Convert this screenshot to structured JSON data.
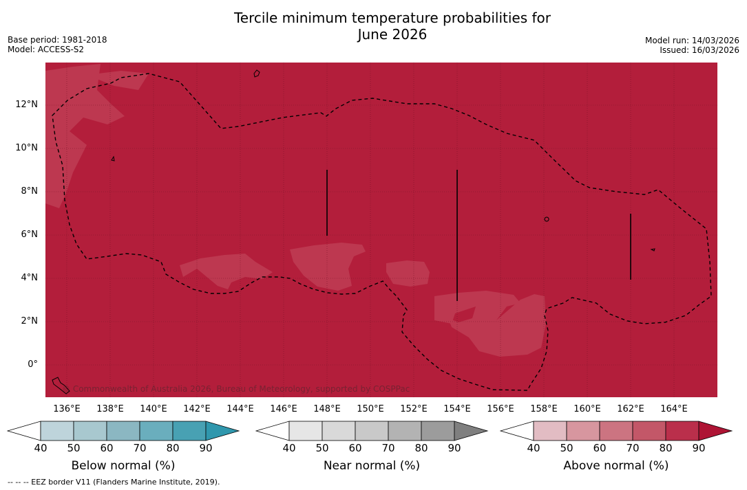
{
  "title_line1": "Tercile minimum temperature probabilities for",
  "title_line2": "June 2026",
  "base_period": "Base period: 1981-2018",
  "model": "Model: ACCESS-S2",
  "model_run": "Model run: 14/03/2026",
  "issued": "Issued: 16/03/2026",
  "copyright": "© Commonwealth of Australia 2026, Bureau of Meteorology, supported by COSPPac",
  "footnote": "-- -- -- EEZ border V11 (Flanders Marine Institute, 2019).",
  "lat_labels": [
    "12°N",
    "10°N",
    "8°N",
    "6°N",
    "4°N",
    "2°N",
    "0°"
  ],
  "lon_labels": [
    "136°E",
    "138°E",
    "140°E",
    "142°E",
    "144°E",
    "146°E",
    "148°E",
    "150°E",
    "152°E",
    "154°E",
    "156°E",
    "158°E",
    "160°E",
    "162°E",
    "164°E"
  ],
  "map_colors": {
    "above_90": "#b31e3b",
    "above_80": "#bd3850",
    "eez_line": "#000000",
    "grid": "#7a1428"
  },
  "colorbars": [
    {
      "label": "Below normal (%)",
      "ticks": [
        "40",
        "50",
        "60",
        "70",
        "80",
        "90"
      ],
      "colors": [
        "#ffffff",
        "#bed4db",
        "#a8c8cf",
        "#8bb7c2",
        "#6aaebd",
        "#48a1b3",
        "#2f97ad"
      ]
    },
    {
      "label": "Near normal (%)",
      "ticks": [
        "40",
        "50",
        "60",
        "70",
        "80",
        "90"
      ],
      "colors": [
        "#ffffff",
        "#e6e6e6",
        "#d9d9d9",
        "#c9c9c9",
        "#b3b3b3",
        "#9c9c9c",
        "#7f7f7f"
      ]
    },
    {
      "label": "Above normal (%)",
      "ticks": [
        "40",
        "50",
        "60",
        "70",
        "80",
        "90"
      ],
      "colors": [
        "#ffffff",
        "#e2bcc3",
        "#d7969f",
        "#cc7481",
        "#c35768",
        "#ba2f4b",
        "#ae1434"
      ]
    }
  ]
}
